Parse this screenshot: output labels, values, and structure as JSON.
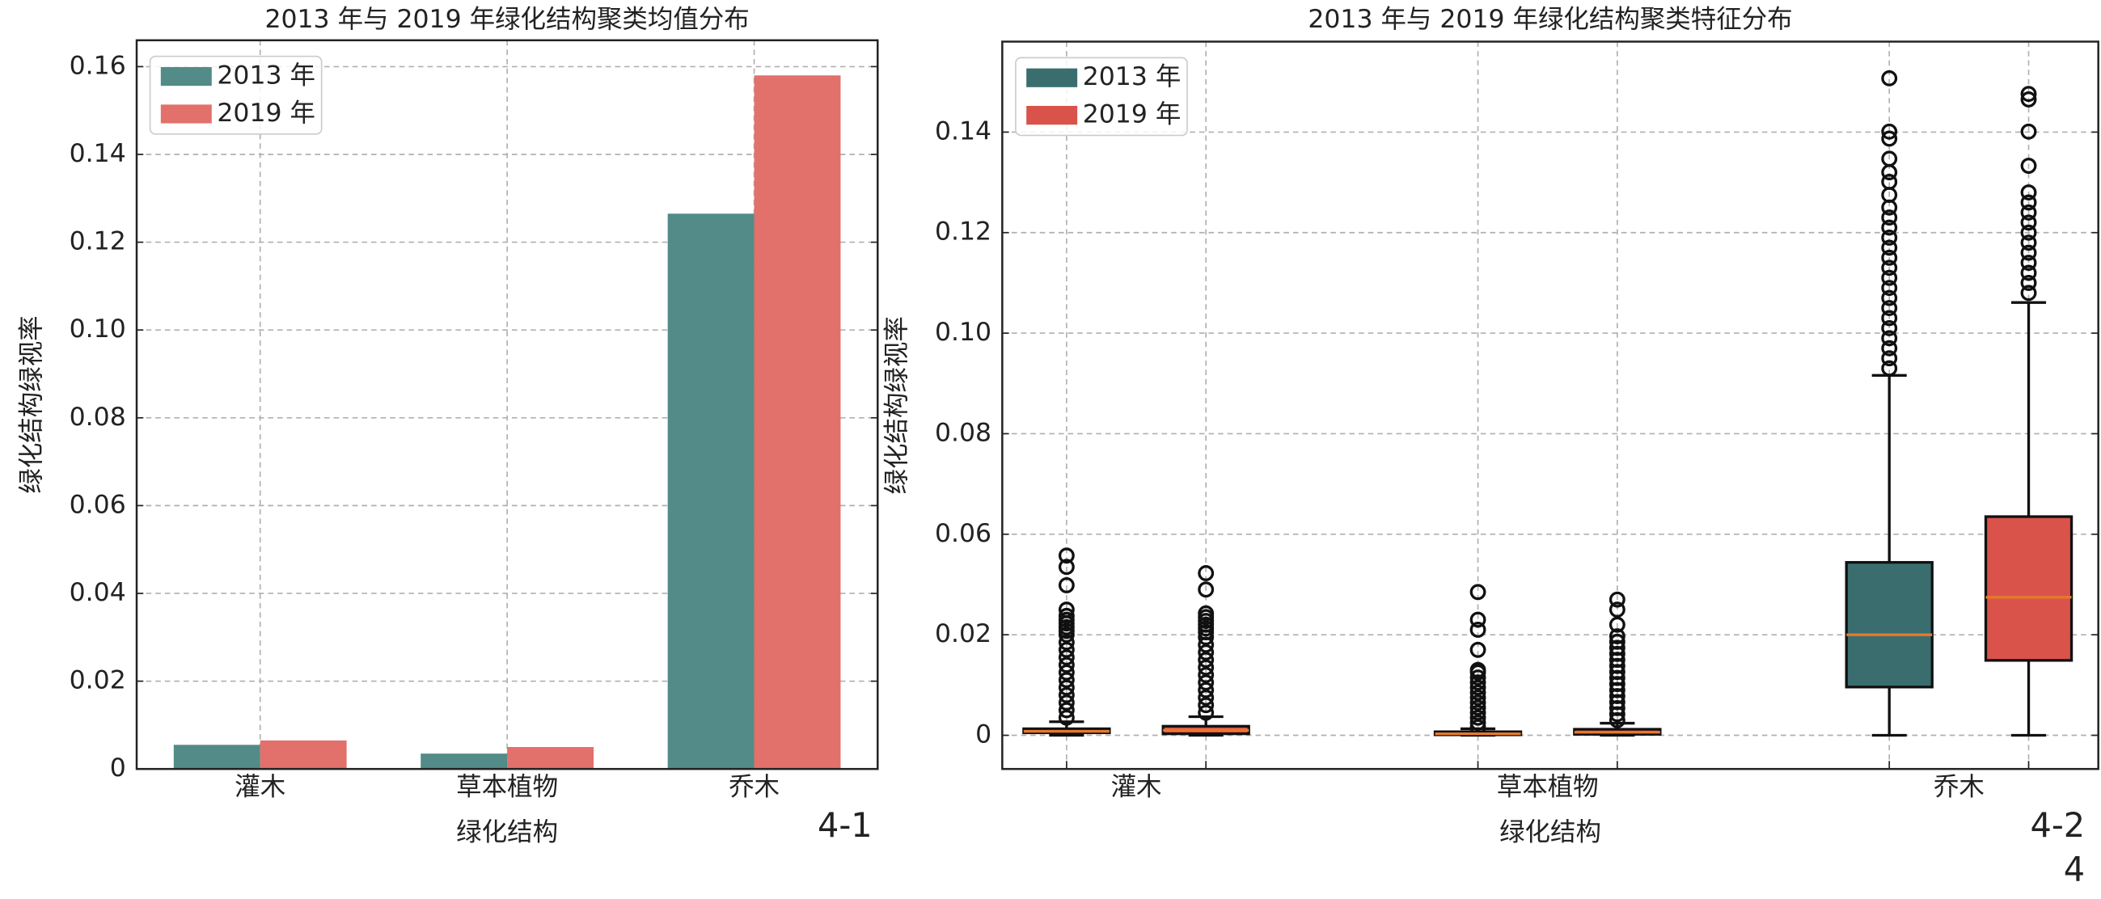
{
  "chart_data": [
    {
      "type": "bar",
      "title": "2013 年与 2019 年绿化结构聚类均值分布",
      "x_label": "绿化结构",
      "y_label": "绿化结构绿视率",
      "annotation": "4-1",
      "categories": [
        "灌木",
        "草本植物",
        "乔木"
      ],
      "series": [
        {
          "name": "2013 年",
          "color": "#528b87",
          "values": [
            0.0055,
            0.0035,
            0.1265
          ]
        },
        {
          "name": "2019 年",
          "color": "#e2706b",
          "values": [
            0.0065,
            0.005,
            0.158
          ]
        }
      ],
      "ylim": [
        0,
        0.166
      ],
      "yticks": [
        0,
        0.02,
        0.04,
        0.06,
        0.08,
        {
          "value": 0.1,
          "label": "0.10"
        },
        0.12,
        0.14,
        0.16
      ],
      "grid": true,
      "legend": "upper left"
    },
    {
      "type": "box",
      "title": "2013 年与 2019 年绿化结构聚类特征分布",
      "x_label": "绿化结构",
      "y_label": "绿化结构绿视率",
      "annotations": [
        "4-2",
        "4"
      ],
      "categories": [
        "灌木",
        "草本植物",
        "乔木"
      ],
      "median_color": "#e8782c",
      "series": [
        {
          "name": "2013 年",
          "color": "#3a6e6e",
          "boxes": [
            {
              "whislo": 0,
              "q1": 0.0005,
              "med": 0.0008,
              "q3": 0.0013,
              "whishi": 0.0027,
              "fliers": [
                0.0035,
                0.005,
                0.0065,
                0.008,
                0.0095,
                0.011,
                0.0125,
                0.014,
                0.0155,
                0.017,
                0.0185,
                0.02,
                0.0215,
                0.023,
                0.0245,
                0.026,
                0.0275,
                0.03,
                0.0397,
                0.047,
                0.0515
              ]
            },
            {
              "whislo": 0,
              "q1": 0.0001,
              "med": 0.0003,
              "q3": 0.0007,
              "whishi": 0.0013,
              "fliers": [
                0.0016,
                0.0025,
                0.0035,
                0.0045,
                0.0055,
                0.0065,
                0.0075,
                0.0085,
                0.0095,
                0.0105,
                0.0115,
                0.0125,
                0.013,
                0.017,
                0.022,
                0.026,
                0.037
              ]
            },
            {
              "whislo": 0,
              "q1": 0.0096,
              "med": 0.02,
              "q3": 0.0488,
              "whishi": 0.0916,
              "fliers": [
                0.093,
                0.095,
                0.097,
                0.099,
                0.101,
                0.103,
                0.105,
                0.107,
                0.109,
                0.111,
                0.113,
                0.115,
                0.117,
                0.119,
                0.121,
                0.123,
                0.125,
                0.1275,
                0.1301,
                0.132,
                0.1347,
                0.1387,
                0.1401,
                0.1507
              ]
            }
          ]
        },
        {
          "name": "2019 年",
          "color": "#d9534a",
          "boxes": [
            {
              "whislo": 0,
              "q1": 0.0003,
              "med": 0.001,
              "q3": 0.0018,
              "whishi": 0.0037,
              "fliers": [
                0.0045,
                0.006,
                0.0075,
                0.009,
                0.0105,
                0.012,
                0.0135,
                0.015,
                0.0165,
                0.018,
                0.0195,
                0.021,
                0.0225,
                0.024,
                0.0255,
                0.027,
                0.0285,
                0.038,
                0.0445
              ]
            },
            {
              "whislo": 0,
              "q1": 0.0002,
              "med": 0.0006,
              "q3": 0.0012,
              "whishi": 0.0024,
              "fliers": [
                0.003,
                0.0042,
                0.0054,
                0.0066,
                0.0078,
                0.009,
                0.0102,
                0.0114,
                0.0126,
                0.0138,
                0.015,
                0.0162,
                0.0174,
                0.0186,
                0.0197,
                0.024,
                0.03,
                0.034
              ]
            },
            {
              "whislo": 0,
              "q1": 0.0149,
              "med": 0.0349,
              "q3": 0.0635,
              "whishi": 0.1061,
              "fliers": [
                0.108,
                0.11,
                0.112,
                0.114,
                0.116,
                0.118,
                0.12,
                0.122,
                0.124,
                0.126,
                0.128,
                0.1333,
                0.1401,
                0.1465,
                0.1476
              ]
            }
          ]
        }
      ],
      "ylim": [
        -0.0067,
        0.158
      ],
      "yticks": [
        0,
        0.02,
        0.06,
        0.08,
        {
          "value": 0.1,
          "label": "0.10"
        },
        0.12,
        0.14
      ],
      "grid": true,
      "legend": "upper left"
    }
  ]
}
